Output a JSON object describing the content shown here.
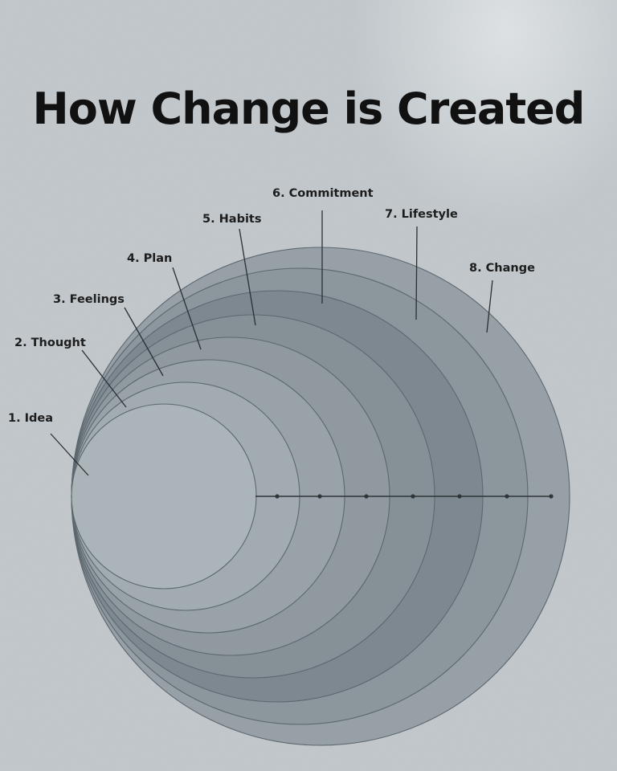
{
  "title": "How Change is Created",
  "stages": [
    {
      "label": "1. Idea",
      "color": "#aab4b9"
    },
    {
      "label": "2. Thought",
      "color": "#a1abb1"
    },
    {
      "label": "3. Feelings",
      "color": "#98a2a8"
    },
    {
      "label": "4. Plan",
      "color": "#8f999f"
    },
    {
      "label": "5. Habits",
      "color": "#859097"
    },
    {
      "label": "6. Commitment",
      "color": "#7d8890"
    },
    {
      "label": "7. Lifestyle",
      "color": "#8c969d"
    },
    {
      "label": "8. Change",
      "color": "#97a0a6"
    }
  ]
}
